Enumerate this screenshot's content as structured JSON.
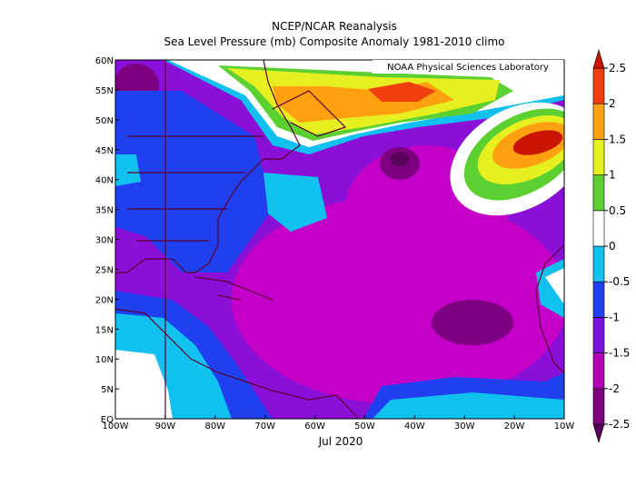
{
  "title": "NCEP/NCAR Reanalysis",
  "subtitle": "Sea Level Pressure (mb) Composite Anomaly 1981-2010 climo",
  "credit": "NOAA Physical Sciences Laboratory",
  "time_label": "Jul 2020",
  "map": {
    "lonlim": [
      -100,
      -10
    ],
    "latlim": [
      0,
      60
    ],
    "lon_ticks": [
      {
        "value": -100,
        "label": "100W"
      },
      {
        "value": -90,
        "label": "90W"
      },
      {
        "value": -80,
        "label": "80W"
      },
      {
        "value": -70,
        "label": "70W"
      },
      {
        "value": -60,
        "label": "60W"
      },
      {
        "value": -50,
        "label": "50W"
      },
      {
        "value": -40,
        "label": "40W"
      },
      {
        "value": -30,
        "label": "30W"
      },
      {
        "value": -20,
        "label": "20W"
      },
      {
        "value": -10,
        "label": "10W"
      }
    ],
    "lat_ticks": [
      {
        "value": 0,
        "label": "EQ"
      },
      {
        "value": 5,
        "label": "5N"
      },
      {
        "value": 10,
        "label": "10N"
      },
      {
        "value": 15,
        "label": "15N"
      },
      {
        "value": 20,
        "label": "20N"
      },
      {
        "value": 25,
        "label": "25N"
      },
      {
        "value": 30,
        "label": "30N"
      },
      {
        "value": 35,
        "label": "35N"
      },
      {
        "value": 40,
        "label": "40N"
      },
      {
        "value": 45,
        "label": "45N"
      },
      {
        "value": 50,
        "label": "50N"
      },
      {
        "value": 55,
        "label": "55N"
      },
      {
        "value": 60,
        "label": "60N"
      }
    ]
  },
  "colorbar": {
    "ticks": [
      -2.5,
      -2,
      -1.5,
      -1,
      -0.5,
      0,
      0.5,
      1,
      1.5,
      2,
      2.5
    ],
    "colors": [
      "#5a0058",
      "#7c0080",
      "#b400b8",
      "#7a10dc",
      "#2040f0",
      "#10c0ee",
      "#ffffff",
      "#5cd030",
      "#e6f020",
      "#ffa010",
      "#f04010",
      "#c81400"
    ]
  }
}
